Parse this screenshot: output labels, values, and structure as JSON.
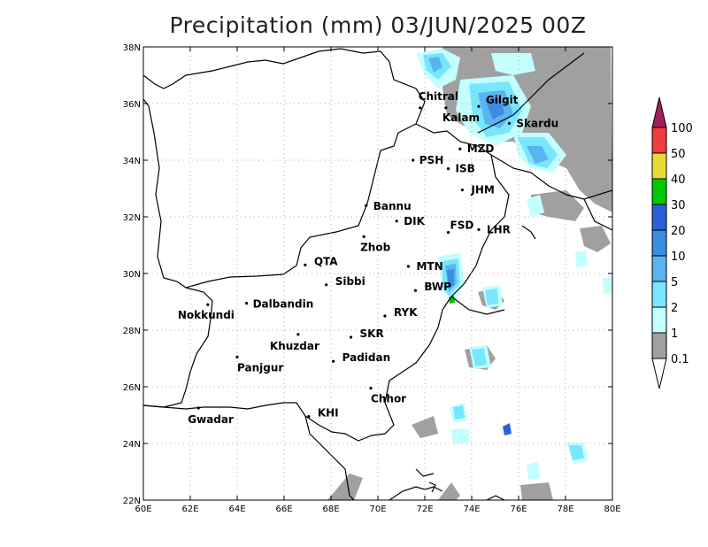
{
  "title": "Precipitation (mm) 03/JUN/2025 00Z",
  "map": {
    "lon_range": [
      60,
      80
    ],
    "lat_range": [
      22,
      38
    ],
    "lon_ticks": [
      "60E",
      "62E",
      "64E",
      "66E",
      "68E",
      "70E",
      "72E",
      "74E",
      "76E",
      "78E",
      "80E"
    ],
    "lat_ticks": [
      "22N",
      "24N",
      "26N",
      "28N",
      "30N",
      "32N",
      "34N",
      "36N",
      "38N"
    ],
    "grid": "dotted"
  },
  "cities": [
    {
      "name": "Chitral",
      "lon": 71.8,
      "lat": 35.85
    },
    {
      "name": "Gilgit",
      "lon": 74.3,
      "lat": 35.9
    },
    {
      "name": "Kalam",
      "lon": 72.9,
      "lat": 35.85
    },
    {
      "name": "Skardu",
      "lon": 75.6,
      "lat": 35.3
    },
    {
      "name": "MZD",
      "lon": 73.5,
      "lat": 34.4
    },
    {
      "name": "PSH",
      "lon": 71.5,
      "lat": 34.0
    },
    {
      "name": "ISB",
      "lon": 73.0,
      "lat": 33.7
    },
    {
      "name": "JHM",
      "lon": 73.6,
      "lat": 32.95
    },
    {
      "name": "Bannu",
      "lon": 69.5,
      "lat": 32.4
    },
    {
      "name": "DIK",
      "lon": 70.8,
      "lat": 31.85
    },
    {
      "name": "FSD",
      "lon": 73.0,
      "lat": 31.45
    },
    {
      "name": "LHR",
      "lon": 74.3,
      "lat": 31.55
    },
    {
      "name": "Zhob",
      "lon": 69.4,
      "lat": 31.3
    },
    {
      "name": "QTA",
      "lon": 66.9,
      "lat": 30.3
    },
    {
      "name": "MTN",
      "lon": 71.3,
      "lat": 30.25
    },
    {
      "name": "Sibbi",
      "lon": 67.8,
      "lat": 29.6
    },
    {
      "name": "BWP",
      "lon": 71.6,
      "lat": 29.4
    },
    {
      "name": "Nokkundi",
      "lon": 62.75,
      "lat": 28.9
    },
    {
      "name": "Dalbandin",
      "lon": 64.4,
      "lat": 28.95
    },
    {
      "name": "RYK",
      "lon": 70.3,
      "lat": 28.5
    },
    {
      "name": "Khuzdar",
      "lon": 66.6,
      "lat": 27.85
    },
    {
      "name": "SKR",
      "lon": 68.85,
      "lat": 27.75
    },
    {
      "name": "Panjgur",
      "lon": 64.0,
      "lat": 27.05
    },
    {
      "name": "Padidan",
      "lon": 68.1,
      "lat": 26.9
    },
    {
      "name": "Chhor",
      "lon": 69.7,
      "lat": 25.95
    },
    {
      "name": "KHI",
      "lon": 67.05,
      "lat": 24.95
    },
    {
      "name": "Gwadar",
      "lon": 62.35,
      "lat": 25.25
    }
  ],
  "legend": {
    "labels": [
      "100",
      "50",
      "40",
      "30",
      "20",
      "10",
      "5",
      "2",
      "1",
      "0.1"
    ],
    "colors": [
      "#a0205e",
      "#f03c3c",
      "#e6dc32",
      "#00c800",
      "#2c60d8",
      "#3c8ce0",
      "#5ab4f0",
      "#78e6ff",
      "#c4ffff",
      "#a0a0a0"
    ]
  }
}
